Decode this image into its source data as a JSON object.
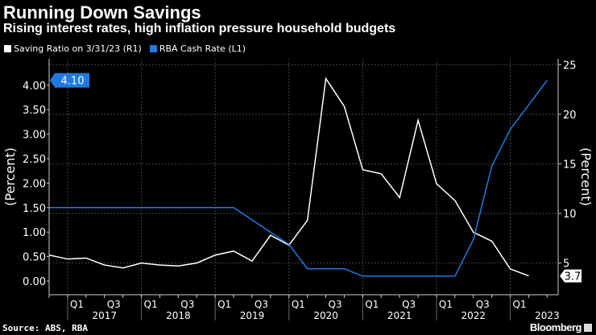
{
  "header": {
    "title": "Running Down Savings",
    "subtitle": "Rising interest rates, high inflation pressure household budgets"
  },
  "footer": {
    "source": "Source: ABS, RBA",
    "brand": "Bloomberg"
  },
  "chart_data": {
    "type": "line",
    "title": "Running Down Savings",
    "subtitle": "Rising interest rates, high inflation pressure household budgets",
    "legend_placement": "top-left",
    "grid": true,
    "x_ticks": {
      "quarters": [
        "Q1",
        "Q3"
      ],
      "years": [
        "2017",
        "2018",
        "2019",
        "2020",
        "2021",
        "2022",
        "2023"
      ]
    },
    "y_left": {
      "label": "(Percent)",
      "ticks": [
        "0.00",
        "0.50",
        "1.00",
        "1.50",
        "2.00",
        "2.50",
        "3.00",
        "3.50",
        "4.00"
      ],
      "range": [
        -0.28,
        4.54
      ]
    },
    "y_right": {
      "label": "(Percent)",
      "ticks": [
        "5",
        "10",
        "15",
        "20",
        "25"
      ],
      "range": [
        1.8,
        25.6
      ]
    },
    "series": [
      {
        "name": "Saving Ratio on 3/31/23 (R1)",
        "axis": "right",
        "color": "#ffffff",
        "last_label": "3.7",
        "x": [
          "2016-09-30",
          "2016-12-31",
          "2017-03-31",
          "2017-06-30",
          "2017-09-30",
          "2017-12-31",
          "2018-03-31",
          "2018-06-30",
          "2018-09-30",
          "2018-12-31",
          "2019-03-31",
          "2019-06-30",
          "2019-09-30",
          "2019-12-31",
          "2020-03-31",
          "2020-06-30",
          "2020-09-30",
          "2020-12-31",
          "2021-03-31",
          "2021-06-30",
          "2021-09-30",
          "2021-12-31",
          "2022-03-31",
          "2022-06-30",
          "2022-09-30",
          "2022-12-31",
          "2023-03-31"
        ],
        "values": [
          5.8,
          5.4,
          5.5,
          4.8,
          4.5,
          5.0,
          4.8,
          4.7,
          5.0,
          5.8,
          6.2,
          5.2,
          7.8,
          6.8,
          9.3,
          23.6,
          20.8,
          14.4,
          14.0,
          11.6,
          19.4,
          13.0,
          11.3,
          8.1,
          7.2,
          4.4,
          3.7
        ]
      },
      {
        "name": "RBA Cash Rate (L1)",
        "axis": "left",
        "color": "#1f7ae0",
        "last_label": "4.10",
        "x": [
          "2016-09-30",
          "2016-12-31",
          "2017-03-31",
          "2017-06-30",
          "2017-09-30",
          "2017-12-31",
          "2018-03-31",
          "2018-06-30",
          "2018-09-30",
          "2018-12-31",
          "2019-03-31",
          "2019-06-30",
          "2019-09-30",
          "2019-12-31",
          "2020-03-31",
          "2020-06-30",
          "2020-09-30",
          "2020-12-31",
          "2021-03-31",
          "2021-06-30",
          "2021-09-30",
          "2021-12-31",
          "2022-03-31",
          "2022-06-30",
          "2022-09-30",
          "2022-12-31",
          "2023-03-31",
          "2023-06-30"
        ],
        "values": [
          1.5,
          1.5,
          1.5,
          1.5,
          1.5,
          1.5,
          1.5,
          1.5,
          1.5,
          1.5,
          1.5,
          1.25,
          1.0,
          0.75,
          0.25,
          0.25,
          0.25,
          0.1,
          0.1,
          0.1,
          0.1,
          0.1,
          0.1,
          0.85,
          2.35,
          3.1,
          3.6,
          4.1
        ]
      }
    ]
  }
}
